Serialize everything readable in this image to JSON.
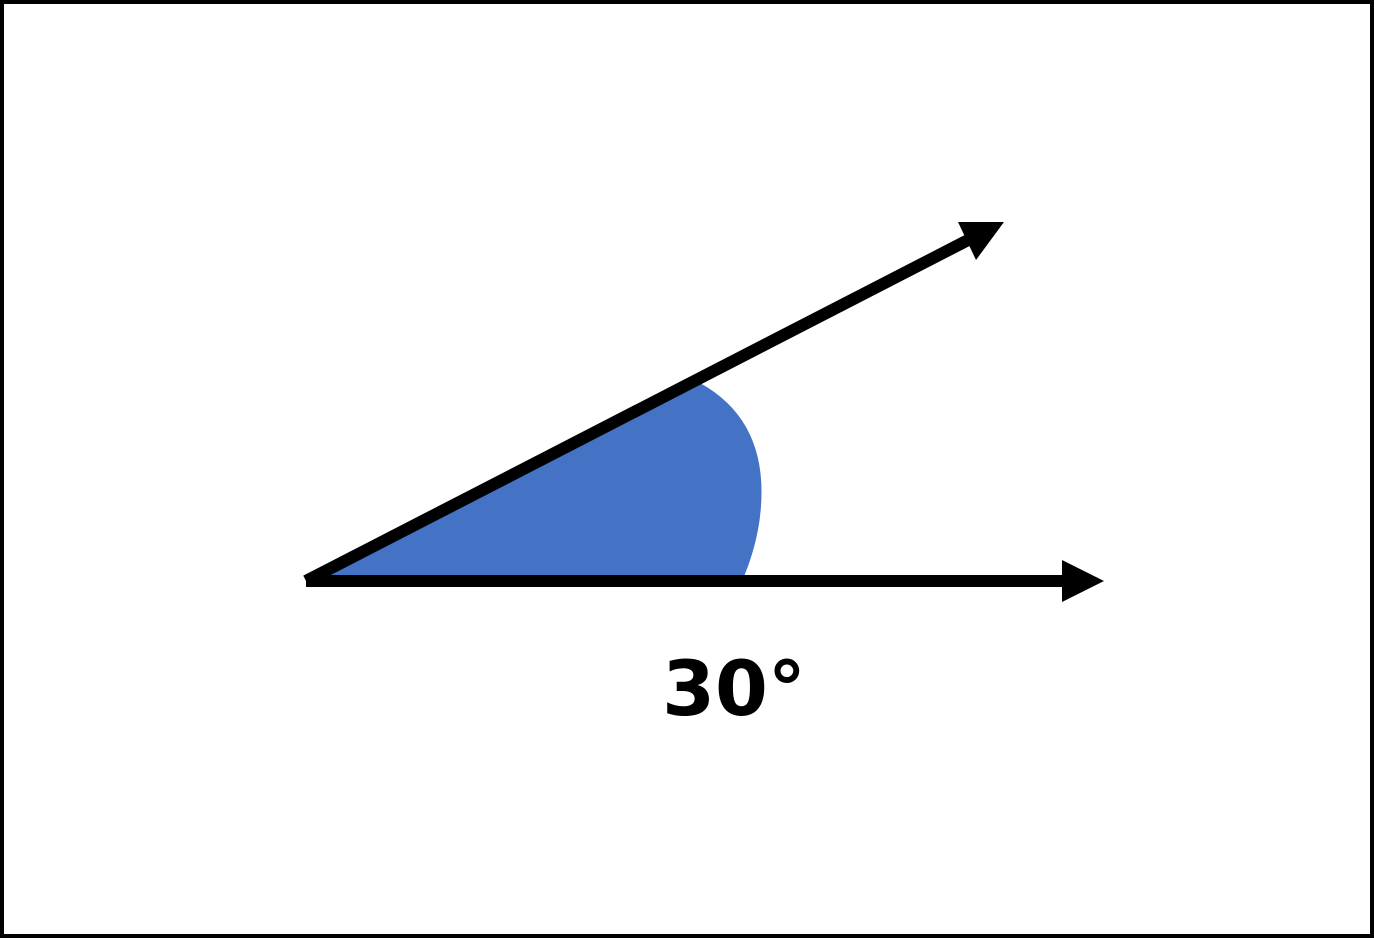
{
  "diagram": {
    "angle_label": "30°",
    "angle_degrees": 30,
    "colors": {
      "fill": "#4472C4",
      "stroke": "#000000",
      "background": "#FFFFFF"
    }
  }
}
